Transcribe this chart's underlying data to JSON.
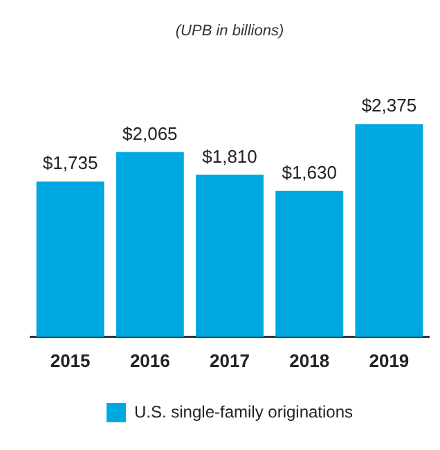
{
  "chart_data": {
    "type": "bar",
    "title": "(UPB in billions)",
    "categories": [
      "2015",
      "2016",
      "2017",
      "2018",
      "2019"
    ],
    "series": [
      {
        "name": "U.S. single-family originations",
        "color": "#00a8e1",
        "values": [
          1735,
          2065,
          1810,
          1630,
          2375
        ],
        "value_labels": [
          "$1,735",
          "$2,065",
          "$1,810",
          "$1,630",
          "$2,375"
        ]
      }
    ],
    "legend": "bottom",
    "grid": false,
    "tick_labels": "x"
  }
}
